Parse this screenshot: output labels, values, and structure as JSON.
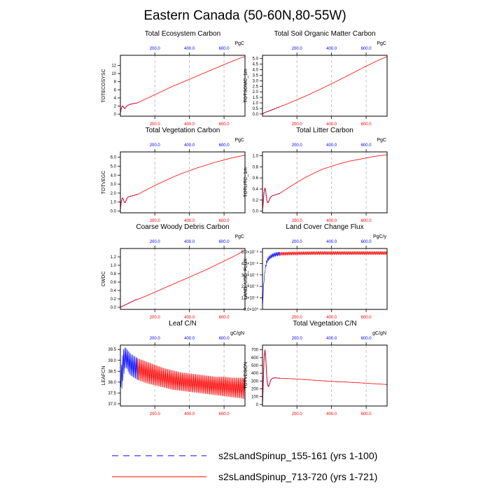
{
  "figure": {
    "title": "Eastern Canada (50-60N,80-55W)",
    "axis_top_ticks": [
      "200.0",
      "400.0",
      "600.0"
    ],
    "axis_bottom_ticks": [
      "200.0",
      "400.0",
      "600.0"
    ],
    "top_axis_color": "#0000ff",
    "bottom_axis_color": "#ff0000"
  },
  "legend": {
    "items": [
      {
        "label": "s2sLandSpinup_155-161 (yrs 1-100)",
        "color": "#0000ff",
        "dash": "dashed"
      },
      {
        "label": "s2sLandSpinup_713-720 (yrs 1-721)",
        "color": "#ff0000",
        "dash": "solid"
      }
    ]
  },
  "chart_data": [
    {
      "type": "line",
      "title": "Total Ecosystem Carbon",
      "ylabel": "TOTECOSYSC",
      "units": "PgC",
      "xlim": [
        1,
        721
      ],
      "ylim": [
        -0.5,
        14.5
      ],
      "yticks": [
        0,
        2,
        4,
        6,
        8,
        10,
        12
      ],
      "ytick_labels": [
        "0",
        "2",
        "4",
        "6",
        "8",
        "10",
        "12"
      ],
      "series": [
        {
          "name": "s2sLandSpinup_155-161",
          "color": "#0000ff",
          "x": [
            1,
            5,
            10,
            15,
            20,
            25,
            30,
            35,
            40,
            45,
            50,
            60,
            70,
            80,
            90,
            100
          ],
          "y": [
            0.3,
            1.2,
            1.9,
            2.0,
            1.7,
            1.4,
            1.5,
            1.9,
            2.1,
            2.2,
            2.3,
            2.45,
            2.55,
            2.65,
            2.7,
            2.8
          ]
        },
        {
          "name": "s2sLandSpinup_713-720",
          "color": "#ff0000",
          "x": [
            1,
            5,
            10,
            15,
            20,
            25,
            30,
            35,
            40,
            45,
            50,
            60,
            70,
            80,
            90,
            100,
            150,
            200,
            250,
            300,
            350,
            400,
            450,
            500,
            550,
            600,
            650,
            700,
            721
          ],
          "y": [
            0.3,
            1.2,
            1.9,
            2.0,
            1.7,
            1.4,
            1.5,
            1.9,
            2.1,
            2.2,
            2.3,
            2.45,
            2.55,
            2.65,
            2.7,
            2.8,
            3.8,
            4.8,
            5.8,
            6.8,
            7.7,
            8.6,
            9.5,
            10.4,
            11.3,
            12.2,
            13.1,
            13.9,
            14.2
          ]
        }
      ]
    },
    {
      "type": "line",
      "title": "Total Soil Organic Matter Carbon",
      "ylabel": "TOTSOMC_1m",
      "units": "PgC",
      "xlim": [
        1,
        721
      ],
      "ylim": [
        -0.2,
        5.3
      ],
      "yticks": [
        0,
        0.5,
        1,
        1.5,
        2,
        2.5,
        3,
        3.5,
        4,
        4.5,
        5
      ],
      "ytick_labels": [
        "0.0",
        "0.5",
        "1.0",
        "1.5",
        "2.0",
        "2.5",
        "3.0",
        "3.5",
        "4.0",
        "4.5",
        "5.0"
      ],
      "series": [
        {
          "name": "s2sLandSpinup_155-161",
          "color": "#0000ff",
          "x": [
            1,
            10,
            20,
            30,
            40,
            50,
            60,
            70,
            80,
            90,
            100
          ],
          "y": [
            0.0,
            0.1,
            0.16,
            0.22,
            0.28,
            0.34,
            0.4,
            0.46,
            0.52,
            0.58,
            0.64
          ]
        },
        {
          "name": "s2sLandSpinup_713-720",
          "color": "#ff0000",
          "x": [
            1,
            10,
            20,
            30,
            40,
            50,
            60,
            70,
            80,
            90,
            100,
            150,
            200,
            250,
            300,
            350,
            400,
            450,
            500,
            550,
            600,
            650,
            700,
            721
          ],
          "y": [
            0.0,
            0.1,
            0.16,
            0.22,
            0.28,
            0.34,
            0.4,
            0.46,
            0.52,
            0.58,
            0.64,
            0.95,
            1.28,
            1.62,
            1.98,
            2.35,
            2.73,
            3.12,
            3.52,
            3.92,
            4.32,
            4.7,
            5.05,
            5.18
          ]
        }
      ]
    },
    {
      "type": "line",
      "title": "Total Vegetation Carbon",
      "ylabel": "TOTVEGC",
      "units": "PgC",
      "xlim": [
        1,
        721
      ],
      "ylim": [
        -0.2,
        6.6
      ],
      "yticks": [
        0,
        1,
        2,
        3,
        4,
        5,
        6
      ],
      "ytick_labels": [
        "0.0",
        "1.0",
        "2.0",
        "3.0",
        "4.0",
        "5.0",
        "6.0"
      ],
      "series": [
        {
          "name": "s2sLandSpinup_155-161",
          "color": "#0000ff",
          "x": [
            1,
            5,
            10,
            15,
            20,
            25,
            30,
            35,
            40,
            45,
            50,
            60,
            70,
            80,
            90,
            100
          ],
          "y": [
            0.2,
            0.9,
            1.4,
            1.45,
            1.2,
            0.95,
            0.95,
            1.2,
            1.45,
            1.55,
            1.6,
            1.65,
            1.7,
            1.75,
            1.8,
            1.85
          ]
        },
        {
          "name": "s2sLandSpinup_713-720",
          "color": "#ff0000",
          "x": [
            1,
            5,
            10,
            15,
            20,
            25,
            30,
            35,
            40,
            45,
            50,
            60,
            70,
            80,
            90,
            100,
            150,
            200,
            250,
            300,
            350,
            400,
            450,
            500,
            550,
            600,
            650,
            700,
            721
          ],
          "y": [
            0.2,
            0.9,
            1.4,
            1.45,
            1.2,
            0.95,
            0.95,
            1.2,
            1.45,
            1.55,
            1.6,
            1.65,
            1.7,
            1.75,
            1.8,
            1.85,
            2.35,
            2.85,
            3.3,
            3.75,
            4.15,
            4.5,
            4.85,
            5.15,
            5.45,
            5.7,
            5.95,
            6.15,
            6.25
          ]
        }
      ]
    },
    {
      "type": "line",
      "title": "Total Litter Carbon",
      "ylabel": "TOTLITC_1m",
      "units": "PgC",
      "xlim": [
        1,
        721
      ],
      "ylim": [
        -0.03,
        1.07
      ],
      "yticks": [
        0,
        0.2,
        0.4,
        0.6,
        0.8,
        1.0
      ],
      "ytick_labels": [
        "0.0",
        "0.2",
        "0.4",
        "0.6",
        "0.8",
        "1.0"
      ],
      "series": [
        {
          "name": "s2sLandSpinup_155-161",
          "color": "#0000ff",
          "x": [
            1,
            5,
            10,
            15,
            20,
            25,
            30,
            35,
            40,
            45,
            50,
            60,
            70,
            80,
            90,
            100
          ],
          "y": [
            0.02,
            0.15,
            0.35,
            0.42,
            0.36,
            0.22,
            0.15,
            0.16,
            0.2,
            0.24,
            0.26,
            0.28,
            0.29,
            0.3,
            0.31,
            0.32
          ]
        },
        {
          "name": "s2sLandSpinup_713-720",
          "color": "#ff0000",
          "x": [
            1,
            5,
            10,
            15,
            20,
            25,
            30,
            35,
            40,
            45,
            50,
            60,
            70,
            80,
            90,
            100,
            150,
            200,
            250,
            300,
            350,
            400,
            450,
            500,
            550,
            600,
            650,
            700,
            721
          ],
          "y": [
            0.02,
            0.15,
            0.35,
            0.42,
            0.36,
            0.22,
            0.15,
            0.16,
            0.2,
            0.24,
            0.26,
            0.28,
            0.29,
            0.3,
            0.31,
            0.32,
            0.42,
            0.52,
            0.61,
            0.69,
            0.76,
            0.81,
            0.86,
            0.9,
            0.93,
            0.96,
            0.99,
            1.01,
            1.02
          ]
        }
      ]
    },
    {
      "type": "line",
      "title": "Coarse Woody Debris Carbon",
      "ylabel": "CWDC",
      "units": "PgC",
      "xlim": [
        1,
        721
      ],
      "ylim": [
        -0.05,
        1.4
      ],
      "yticks": [
        0,
        0.2,
        0.4,
        0.6,
        0.8,
        1.0,
        1.2
      ],
      "ytick_labels": [
        "0.0",
        "0.2",
        "0.4",
        "0.6",
        "0.8",
        "1.0",
        "1.2"
      ],
      "series": [
        {
          "name": "s2sLandSpinup_155-161",
          "color": "#0000ff",
          "x": [
            1,
            10,
            20,
            30,
            40,
            50,
            60,
            70,
            80,
            90,
            100
          ],
          "y": [
            0.0,
            0.02,
            0.04,
            0.06,
            0.08,
            0.1,
            0.12,
            0.14,
            0.16,
            0.18,
            0.19
          ]
        },
        {
          "name": "s2sLandSpinup_713-720",
          "color": "#ff0000",
          "x": [
            1,
            10,
            20,
            30,
            40,
            50,
            60,
            70,
            80,
            90,
            100,
            150,
            200,
            250,
            300,
            350,
            400,
            450,
            500,
            550,
            600,
            650,
            700,
            721
          ],
          "y": [
            0.0,
            0.02,
            0.04,
            0.06,
            0.08,
            0.1,
            0.12,
            0.14,
            0.16,
            0.18,
            0.19,
            0.27,
            0.36,
            0.45,
            0.54,
            0.63,
            0.72,
            0.81,
            0.9,
            1.0,
            1.1,
            1.2,
            1.31,
            1.36
          ]
        }
      ]
    },
    {
      "type": "line",
      "title": "Land Cover Change Flux",
      "ylabel": "LAND_USE_FLUX",
      "units": "PgC/y",
      "xlim": [
        1,
        721
      ],
      "ylim": [
        0,
        5.3e-08
      ],
      "yticks": [
        0,
        1e-08,
        2e-08,
        3e-08,
        4e-08,
        5e-08
      ],
      "ytick_labels": [
        "0.0×10⁰",
        "1.0×10⁻⁸",
        "2.0×10⁻⁸",
        "3.0×10⁻⁸",
        "4.0×10⁻⁸",
        "5.0×10⁻⁸"
      ],
      "series": [
        {
          "name": "s2sLandSpinup_155-161",
          "color": "#0000ff",
          "oscillating": true,
          "x": [
            1,
            5,
            10,
            15,
            20,
            25,
            30,
            40,
            50,
            60,
            70,
            80,
            90,
            100
          ],
          "y": [
            0.0,
            1.5e-08,
            2.6e-08,
            3.3e-08,
            3.8e-08,
            4.1e-08,
            4.3e-08,
            4.5e-08,
            4.6e-08,
            4.7e-08,
            4.75e-08,
            4.8e-08,
            4.82e-08,
            4.84e-08
          ],
          "band": 3.5e-09
        },
        {
          "name": "s2sLandSpinup_713-720",
          "color": "#ff0000",
          "oscillating": true,
          "x": [
            100,
            200,
            300,
            400,
            500,
            600,
            700,
            721
          ],
          "y": [
            4.84e-08,
            4.88e-08,
            4.9e-08,
            4.9e-08,
            4.9e-08,
            4.9e-08,
            4.9e-08,
            4.9e-08
          ],
          "band": 3e-09
        }
      ]
    },
    {
      "type": "line",
      "title": "Leaf C/N",
      "ylabel": "LEAFCN",
      "units": "gC/gN",
      "xlim": [
        1,
        721
      ],
      "ylim": [
        36.9,
        39.7
      ],
      "yticks": [
        37.0,
        37.5,
        38.0,
        38.5,
        39.0,
        39.5
      ],
      "ytick_labels": [
        "37.0",
        "37.5",
        "38.0",
        "38.5",
        "39.0",
        "39.5"
      ],
      "series": [
        {
          "name": "s2sLandSpinup_155-161",
          "color": "#0000ff",
          "oscillating": true,
          "x": [
            1,
            10,
            20,
            30,
            40,
            50,
            60,
            70,
            80,
            90,
            100
          ],
          "top": [
            38.2,
            39.1,
            39.55,
            39.6,
            39.5,
            39.4,
            39.3,
            39.25,
            39.2,
            39.15,
            39.1
          ],
          "bottom": [
            37.8,
            37.7,
            38.3,
            38.7,
            38.6,
            38.4,
            38.3,
            38.25,
            38.2,
            38.15,
            38.1
          ]
        },
        {
          "name": "s2sLandSpinup_713-720",
          "color": "#ff0000",
          "oscillating": true,
          "x": [
            100,
            150,
            200,
            250,
            300,
            350,
            400,
            450,
            500,
            550,
            600,
            650,
            700,
            721
          ],
          "top": [
            39.1,
            38.95,
            38.8,
            38.65,
            38.55,
            38.45,
            38.4,
            38.35,
            38.3,
            38.25,
            38.25,
            38.2,
            38.2,
            38.2
          ],
          "bottom": [
            38.1,
            37.95,
            37.85,
            37.75,
            37.65,
            37.6,
            37.55,
            37.5,
            37.45,
            37.4,
            37.35,
            37.3,
            37.25,
            37.2
          ]
        }
      ]
    },
    {
      "type": "line",
      "title": "Total Vegetation C/N",
      "ylabel": "TOTVEGCN",
      "units": "gC/gN",
      "xlim": [
        1,
        721
      ],
      "ylim": [
        -20,
        760
      ],
      "yticks": [
        0,
        100,
        200,
        300,
        400,
        500,
        600,
        700
      ],
      "ytick_labels": [
        "0",
        "100",
        "200",
        "300",
        "400",
        "500",
        "600",
        "700"
      ],
      "series": [
        {
          "name": "s2sLandSpinup_155-161",
          "color": "#0000ff",
          "x": [
            1,
            5,
            10,
            15,
            20,
            25,
            30,
            35,
            40,
            45,
            50,
            60,
            70,
            80,
            90,
            100
          ],
          "y": [
            0,
            250,
            600,
            700,
            600,
            380,
            260,
            230,
            250,
            290,
            320,
            335,
            340,
            340,
            338,
            336
          ]
        },
        {
          "name": "s2sLandSpinup_713-720",
          "color": "#ff0000",
          "x": [
            1,
            5,
            10,
            15,
            20,
            25,
            30,
            35,
            40,
            45,
            50,
            60,
            70,
            80,
            90,
            100,
            200,
            300,
            400,
            500,
            600,
            700,
            721
          ],
          "y": [
            0,
            250,
            600,
            700,
            600,
            380,
            260,
            230,
            250,
            290,
            320,
            335,
            340,
            340,
            338,
            336,
            325,
            310,
            295,
            285,
            272,
            258,
            255
          ]
        }
      ]
    }
  ]
}
